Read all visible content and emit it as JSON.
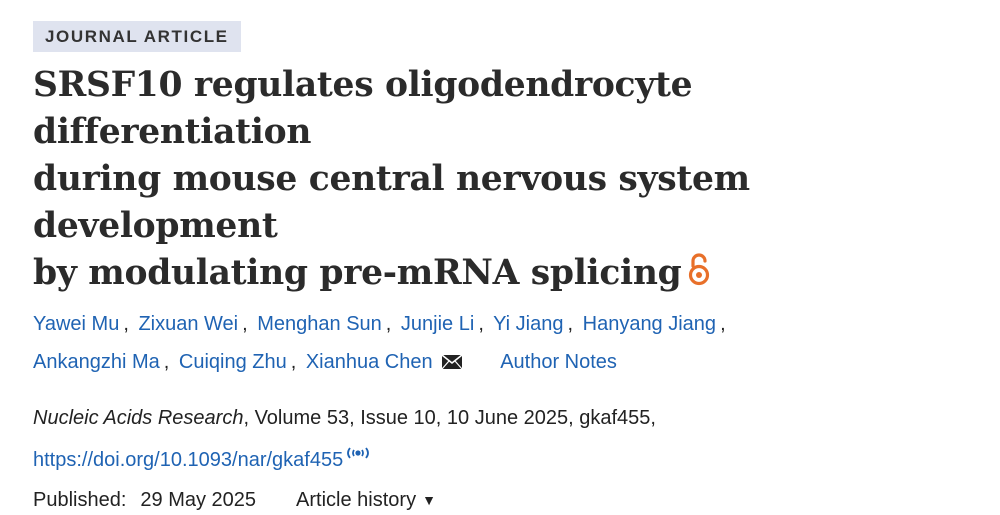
{
  "badge": "JOURNAL ARTICLE",
  "title": {
    "line1": "SRSF10 regulates oligodendrocyte differentiation",
    "line2": "during mouse central nervous system development",
    "line3": "by modulating pre-mRNA splicing",
    "open_access_icon": "open-access-lock-icon",
    "oa_color": "#e8702a"
  },
  "authors": {
    "names": [
      "Yawei Mu",
      "Zixuan Wei",
      "Menghan Sun",
      "Junjie Li",
      "Yi Jiang",
      "Hanyang Jiang",
      "Ankangzhi Ma",
      "Cuiqing Zhu",
      "Xianhua Chen"
    ],
    "separator": ",",
    "corresponding_icon": "envelope-icon",
    "author_notes_label": "Author Notes",
    "link_color": "#1f63b3"
  },
  "citation": {
    "journal": "Nucleic Acids Research",
    "rest": ", Volume 53, Issue 10, 10 June 2025, gkaf455,"
  },
  "doi": {
    "url": "https://doi.org/10.1093/nar/gkaf455",
    "altmetric_icon": "altmetric-icon"
  },
  "published": {
    "label": "Published:",
    "date": "29 May 2025",
    "history_label": "Article history",
    "caret_icon": "caret-down-icon"
  }
}
